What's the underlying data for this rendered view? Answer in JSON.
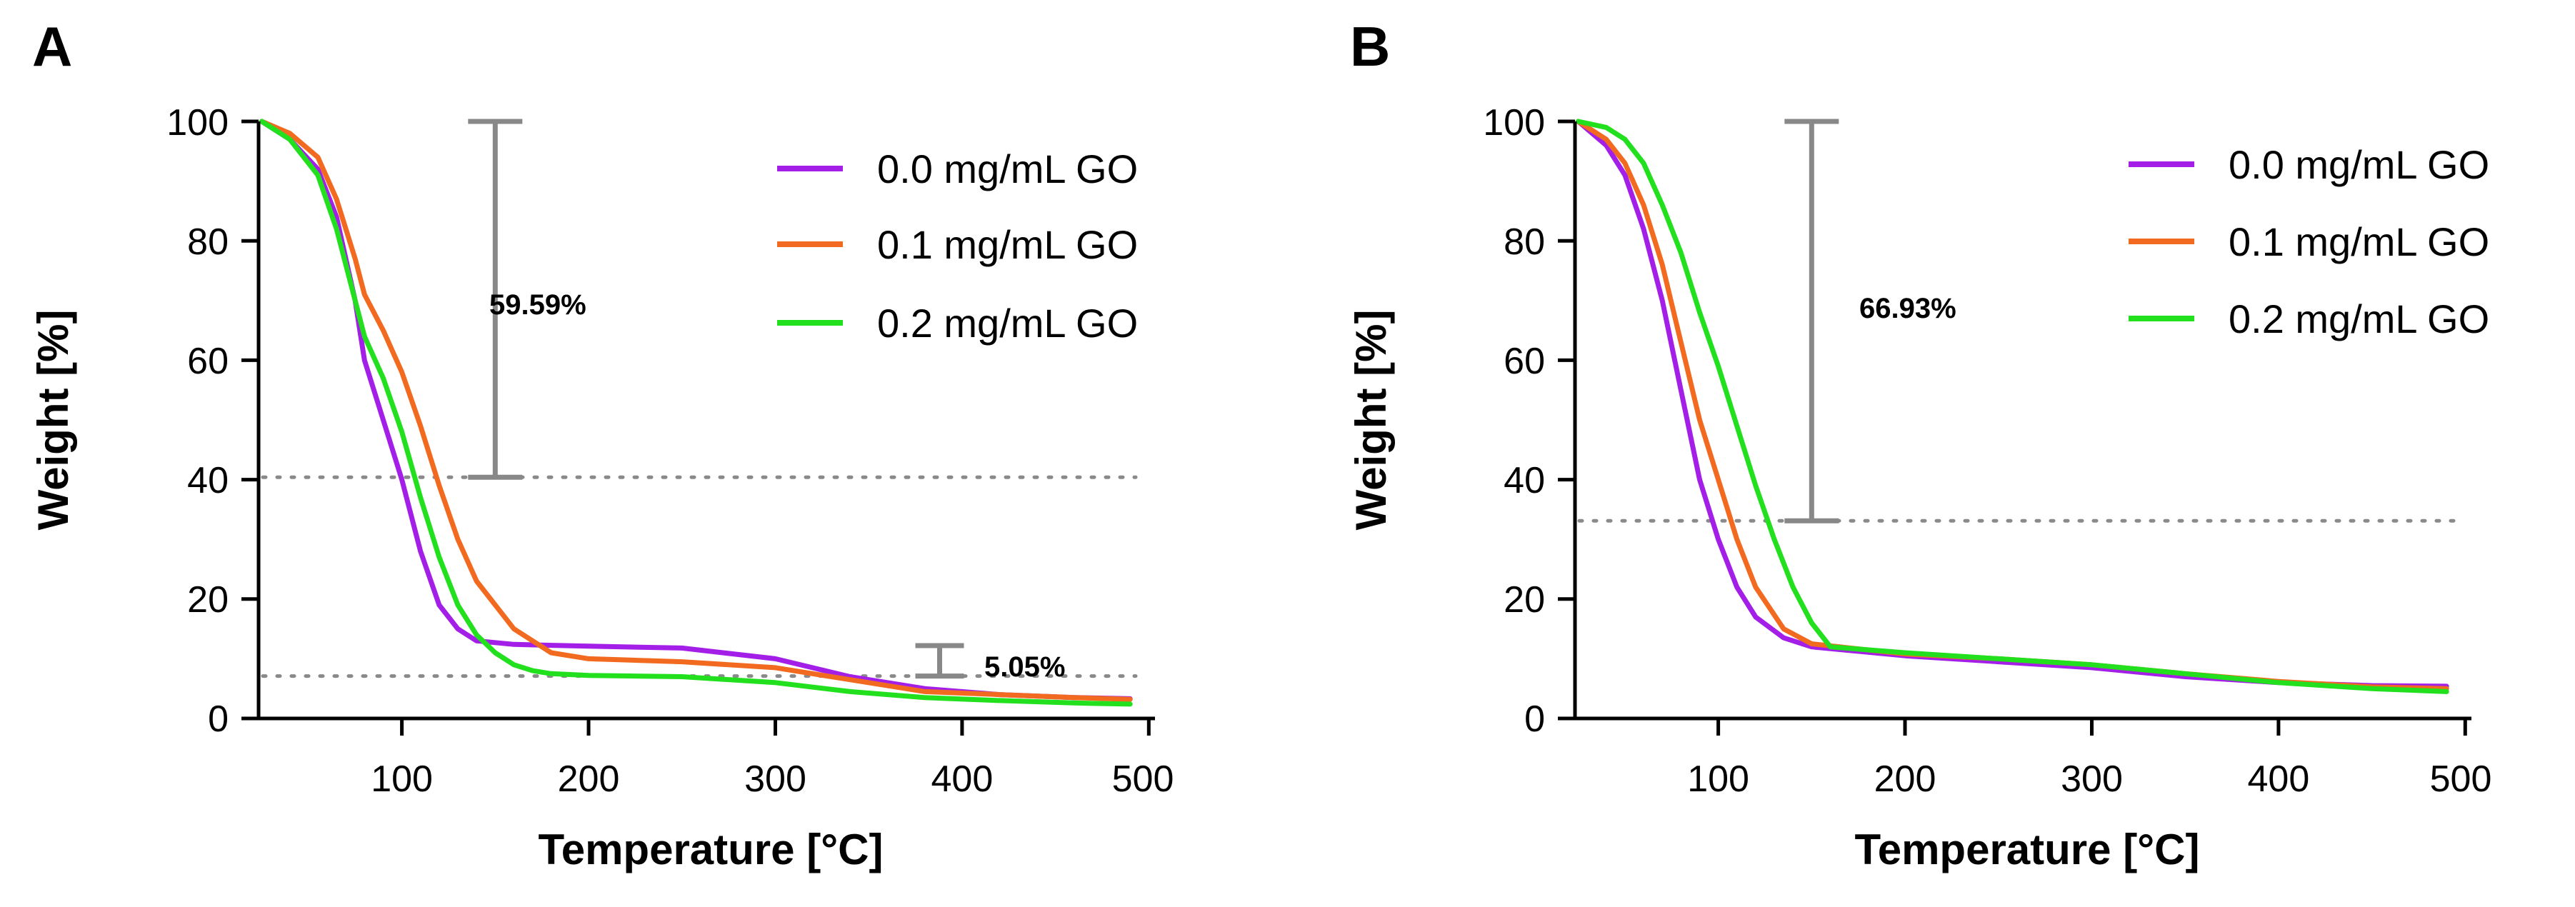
{
  "colors": {
    "purple": "#a31fe8",
    "orange": "#f26a1f",
    "green": "#22e01e",
    "gray": "#888888"
  },
  "chart_data": [
    {
      "panel": "A",
      "type": "line",
      "title": "",
      "xlabel": "Temperature [°C]",
      "ylabel": "Weight [%]",
      "xlim": [
        20,
        500
      ],
      "ylim": [
        0,
        100
      ],
      "xticks": [
        100,
        200,
        300,
        400,
        500
      ],
      "yticks": [
        0,
        20,
        40,
        60,
        80,
        100
      ],
      "legend": "top-right",
      "reference_lines": [
        40.4,
        7.1
      ],
      "annotations": [
        {
          "text": "59.59%",
          "x": 150,
          "y_from": 40.4,
          "y_to": 100
        },
        {
          "text": "5.05%",
          "x": 388,
          "y_from": 7.1,
          "y_to": 12.2
        }
      ],
      "series": [
        {
          "name": "0.0 mg/mL GO",
          "color": "#a31fe8",
          "x": [
            25,
            40,
            55,
            65,
            75,
            80,
            90,
            100,
            110,
            120,
            130,
            140,
            160,
            200,
            250,
            300,
            340,
            380,
            420,
            460,
            490
          ],
          "y": [
            100,
            97,
            92,
            84,
            70,
            60,
            50,
            40,
            28,
            19,
            15,
            13,
            12.4,
            12.1,
            11.8,
            10,
            7,
            5,
            4,
            3.5,
            3.3
          ]
        },
        {
          "name": "0.1 mg/mL GO",
          "color": "#f26a1f",
          "x": [
            25,
            40,
            55,
            65,
            75,
            80,
            90,
            100,
            110,
            120,
            130,
            140,
            160,
            180,
            200,
            250,
            300,
            340,
            380,
            420,
            460,
            490
          ],
          "y": [
            100,
            98,
            94,
            87,
            77,
            71,
            65,
            58,
            49,
            39,
            30,
            23,
            15,
            11,
            10,
            9.5,
            8.5,
            6.5,
            4.5,
            4,
            3.5,
            3.2
          ]
        },
        {
          "name": "0.2 mg/mL GO",
          "color": "#22e01e",
          "x": [
            25,
            40,
            55,
            65,
            75,
            80,
            90,
            100,
            110,
            120,
            130,
            140,
            150,
            160,
            170,
            180,
            200,
            250,
            300,
            340,
            380,
            420,
            460,
            490
          ],
          "y": [
            100,
            97,
            91,
            82,
            70,
            64,
            57,
            48,
            37,
            27,
            19,
            14,
            11,
            9,
            8,
            7.5,
            7.2,
            7,
            6,
            4.5,
            3.5,
            3,
            2.6,
            2.4
          ]
        }
      ]
    },
    {
      "panel": "B",
      "type": "line",
      "title": "",
      "xlabel": "Temperature [°C]",
      "ylabel": "Weight [%]",
      "xlim": [
        20,
        500
      ],
      "ylim": [
        0,
        100
      ],
      "xticks": [
        100,
        200,
        300,
        400,
        500
      ],
      "yticks": [
        0,
        20,
        40,
        60,
        80,
        100
      ],
      "legend": "top-right",
      "reference_lines": [
        33.1
      ],
      "annotations": [
        {
          "text": "66.93%",
          "x": 150,
          "y_from": 33.1,
          "y_to": 100
        }
      ],
      "series": [
        {
          "name": "0.0 mg/mL GO",
          "color": "#a31fe8",
          "x": [
            25,
            40,
            50,
            60,
            70,
            80,
            90,
            100,
            110,
            120,
            135,
            150,
            200,
            250,
            300,
            350,
            400,
            450,
            490
          ],
          "y": [
            100,
            96,
            91,
            82,
            70,
            55,
            40,
            30,
            22,
            17,
            13.5,
            12,
            10.5,
            9.5,
            8.5,
            7,
            6,
            5.5,
            5.4
          ]
        },
        {
          "name": "0.1 mg/mL GO",
          "color": "#f26a1f",
          "x": [
            25,
            40,
            50,
            60,
            70,
            80,
            90,
            100,
            110,
            120,
            135,
            150,
            200,
            250,
            300,
            350,
            400,
            450,
            490
          ],
          "y": [
            100,
            97,
            93,
            86,
            76,
            63,
            50,
            40,
            30,
            22,
            15,
            12.5,
            10.8,
            10,
            9,
            7.5,
            6.2,
            5.3,
            5
          ]
        },
        {
          "name": "0.2 mg/mL GO",
          "color": "#22e01e",
          "x": [
            25,
            40,
            50,
            60,
            70,
            80,
            90,
            100,
            110,
            120,
            130,
            140,
            150,
            160,
            200,
            250,
            300,
            350,
            400,
            450,
            490
          ],
          "y": [
            100,
            99,
            97,
            93,
            86,
            78,
            68,
            59,
            49,
            39,
            30,
            22,
            16,
            12,
            11,
            10,
            9,
            7.5,
            6,
            5,
            4.5
          ]
        }
      ]
    }
  ]
}
